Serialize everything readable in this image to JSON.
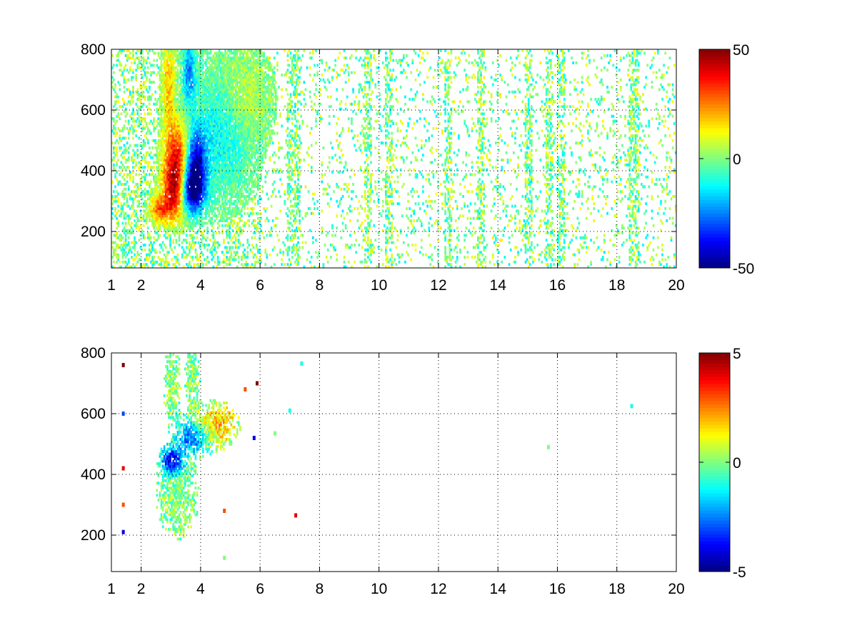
{
  "colormap": "jet",
  "background_color": "#ffffff",
  "axes_color": "#000000",
  "chart_data": [
    {
      "type": "heatmap",
      "title": "",
      "xlabel": "",
      "ylabel": "",
      "xlim": [
        1,
        20
      ],
      "ylim": [
        80,
        800
      ],
      "x_ticks": [
        1,
        2,
        4,
        6,
        8,
        10,
        12,
        14,
        16,
        18,
        20
      ],
      "x_tick_labels": [
        "1",
        "2",
        "4",
        "6",
        "8",
        "10",
        "12",
        "14",
        "16",
        "18",
        "20"
      ],
      "y_ticks": [
        200,
        400,
        600,
        800
      ],
      "y_tick_labels": [
        "200",
        "400",
        "600",
        "800"
      ],
      "grid": true,
      "grid_style": "dotted",
      "colorbar": {
        "clim": [
          -50,
          50
        ],
        "tick_labels": [
          "50",
          "0",
          "-50"
        ],
        "tick_values": [
          50,
          0,
          -50
        ]
      },
      "features": [
        {
          "kind": "blob",
          "x": 3.1,
          "y": 340,
          "sx": 0.28,
          "sy": 70,
          "value": 45
        },
        {
          "kind": "blob",
          "x": 2.6,
          "y": 270,
          "sx": 0.25,
          "sy": 30,
          "value": 25
        },
        {
          "kind": "blob",
          "x": 3.2,
          "y": 470,
          "sx": 0.3,
          "sy": 70,
          "value": 30
        },
        {
          "kind": "blob",
          "x": 2.9,
          "y": 680,
          "sx": 0.15,
          "sy": 90,
          "value": 20
        },
        {
          "kind": "blob",
          "x": 3.7,
          "y": 330,
          "sx": 0.28,
          "sy": 50,
          "value": -48
        },
        {
          "kind": "blob",
          "x": 3.8,
          "y": 430,
          "sx": 0.25,
          "sy": 70,
          "value": -40
        },
        {
          "kind": "blob",
          "x": 3.6,
          "y": 720,
          "sx": 0.15,
          "sy": 70,
          "value": -25
        },
        {
          "kind": "blob",
          "x": 4.6,
          "y": 520,
          "sx": 0.7,
          "sy": 130,
          "value": -12
        },
        {
          "kind": "blob",
          "x": 5.4,
          "y": 640,
          "sx": 0.5,
          "sy": 80,
          "value": 8
        }
      ],
      "sparse_columns_x": [
        7.0,
        7.2,
        9.6,
        10.3,
        12.3,
        13.4,
        15.0,
        15.7,
        16.1,
        18.5,
        18.6
      ],
      "background_value_range": [
        -15,
        15
      ]
    },
    {
      "type": "heatmap",
      "title": "",
      "xlabel": "",
      "ylabel": "",
      "xlim": [
        1,
        20
      ],
      "ylim": [
        80,
        800
      ],
      "x_ticks": [
        1,
        2,
        4,
        6,
        8,
        10,
        12,
        14,
        16,
        18,
        20
      ],
      "x_tick_labels": [
        "1",
        "2",
        "4",
        "6",
        "8",
        "10",
        "12",
        "14",
        "16",
        "18",
        "20"
      ],
      "y_ticks": [
        200,
        400,
        600,
        800
      ],
      "y_tick_labels": [
        "200",
        "400",
        "600",
        "800"
      ],
      "grid": true,
      "grid_style": "dotted",
      "colorbar": {
        "clim": [
          -5,
          5
        ],
        "tick_labels": [
          "5",
          "0",
          "-5"
        ],
        "tick_values": [
          5,
          0,
          -5
        ]
      },
      "features": [
        {
          "kind": "blob",
          "x": 3.2,
          "y": 330,
          "sx": 0.45,
          "sy": 90,
          "value": 0
        },
        {
          "kind": "blob",
          "x": 3.0,
          "y": 700,
          "sx": 0.18,
          "sy": 80,
          "value": 0
        },
        {
          "kind": "blob",
          "x": 3.7,
          "y": 720,
          "sx": 0.15,
          "sy": 70,
          "value": 0
        },
        {
          "kind": "blob",
          "x": 3.0,
          "y": 440,
          "sx": 0.25,
          "sy": 30,
          "value": -4
        },
        {
          "kind": "blob",
          "x": 3.7,
          "y": 520,
          "sx": 0.4,
          "sy": 40,
          "value": -3
        },
        {
          "kind": "blob",
          "x": 4.5,
          "y": 560,
          "sx": 0.5,
          "sy": 50,
          "value": 2
        }
      ],
      "isolated_points": [
        {
          "x": 5.9,
          "y": 700,
          "value": 5
        },
        {
          "x": 5.5,
          "y": 680,
          "value": 3
        },
        {
          "x": 5.8,
          "y": 520,
          "value": -4
        },
        {
          "x": 15.7,
          "y": 490,
          "value": 0
        },
        {
          "x": 18.5,
          "y": 625,
          "value": -1
        },
        {
          "x": 7.0,
          "y": 610,
          "value": -1
        },
        {
          "x": 7.4,
          "y": 765,
          "value": -1
        },
        {
          "x": 6.5,
          "y": 535,
          "value": 0
        },
        {
          "x": 7.2,
          "y": 265,
          "value": 4
        },
        {
          "x": 4.8,
          "y": 280,
          "value": 3
        },
        {
          "x": 4.8,
          "y": 125,
          "value": 0
        },
        {
          "x": 1.4,
          "y": 760,
          "value": 5
        },
        {
          "x": 1.4,
          "y": 600,
          "value": -3
        },
        {
          "x": 1.4,
          "y": 420,
          "value": 4
        },
        {
          "x": 1.4,
          "y": 300,
          "value": 3
        },
        {
          "x": 1.4,
          "y": 210,
          "value": -4
        }
      ]
    }
  ]
}
